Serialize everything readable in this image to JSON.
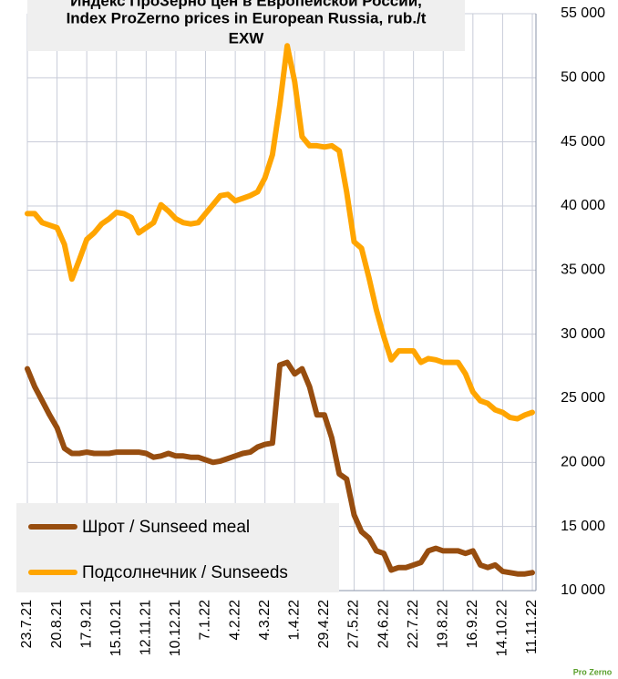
{
  "chart_data": {
    "type": "line",
    "title": [
      "Индекс ПроЗерно цен в Европейской России,",
      "Index ProZerno prices in European Russia, rub./t",
      "EXW"
    ],
    "categories": [
      "23.7.21",
      null,
      null,
      null,
      "20.8.21",
      null,
      null,
      null,
      "17.9.21",
      null,
      null,
      null,
      "15.10.21",
      null,
      null,
      null,
      "12.11.21",
      null,
      null,
      null,
      "10.12.21",
      null,
      null,
      null,
      "7.1.22",
      null,
      null,
      null,
      "4.2.22",
      null,
      null,
      null,
      "4.3.22",
      null,
      null,
      null,
      "1.4.22",
      null,
      null,
      null,
      "29.4.22",
      null,
      null,
      null,
      "27.5.22",
      null,
      null,
      null,
      "24.6.22",
      null,
      null,
      null,
      "22.7.22",
      null,
      null,
      null,
      "19.8.22",
      null,
      null,
      null,
      "16.9.22",
      null,
      null,
      null,
      "14.10.22",
      null,
      null,
      null,
      "11.11.22"
    ],
    "series": [
      {
        "name": "Шрот / Sunseed meal",
        "color": "#974d0f",
        "values": [
          27300,
          25900,
          24800,
          23700,
          22700,
          21100,
          20700,
          20700,
          20800,
          20700,
          20700,
          20700,
          20800,
          20800,
          20800,
          20800,
          20700,
          20400,
          20500,
          20700,
          20500,
          20500,
          20400,
          20400,
          20200,
          20000,
          20100,
          20300,
          20500,
          20700,
          20800,
          21200,
          21400,
          21500,
          27600,
          27800,
          26900,
          27300,
          25900,
          23700,
          23700,
          21900,
          19100,
          18700,
          15900,
          14600,
          14100,
          13100,
          12900,
          11600,
          11800,
          11800,
          12000,
          12200,
          13100,
          13300,
          13100,
          13100,
          13100,
          12900,
          13100,
          12000,
          11800,
          12000,
          11500,
          11400,
          11300,
          11300,
          11400
        ]
      },
      {
        "name": "Подсолнечник / Sunseeds",
        "color": "#ffa500",
        "values": [
          39400,
          39400,
          38700,
          38500,
          38300,
          37000,
          34300,
          35800,
          37400,
          37900,
          38600,
          39000,
          39500,
          39400,
          39100,
          37900,
          38300,
          38700,
          40100,
          39600,
          39000,
          38700,
          38600,
          38700,
          39400,
          40100,
          40800,
          40900,
          40400,
          40600,
          40800,
          41100,
          42200,
          44000,
          47900,
          52500,
          49700,
          45400,
          44700,
          44700,
          44600,
          44700,
          44300,
          41100,
          37200,
          36700,
          34400,
          31900,
          29800,
          28000,
          28700,
          28700,
          28700,
          27800,
          28100,
          28000,
          27800,
          27800,
          27800,
          26900,
          25500,
          24800,
          24600,
          24100,
          23900,
          23500,
          23400,
          23700,
          23900
        ]
      }
    ],
    "ylim": [
      10000,
      55000
    ],
    "yticks": [
      {
        "value": 10000,
        "label": "10 000"
      },
      {
        "value": 15000,
        "label": "15 000"
      },
      {
        "value": 20000,
        "label": "20 000"
      },
      {
        "value": 25000,
        "label": "25 000"
      },
      {
        "value": 30000,
        "label": "30 000"
      },
      {
        "value": 35000,
        "label": "35 000"
      },
      {
        "value": 40000,
        "label": "40 000"
      },
      {
        "value": 45000,
        "label": "45 000"
      },
      {
        "value": 50000,
        "label": "50 000"
      },
      {
        "value": 55000,
        "label": "55 000"
      }
    ],
    "grid": true,
    "logo": "Pro Zerno"
  }
}
